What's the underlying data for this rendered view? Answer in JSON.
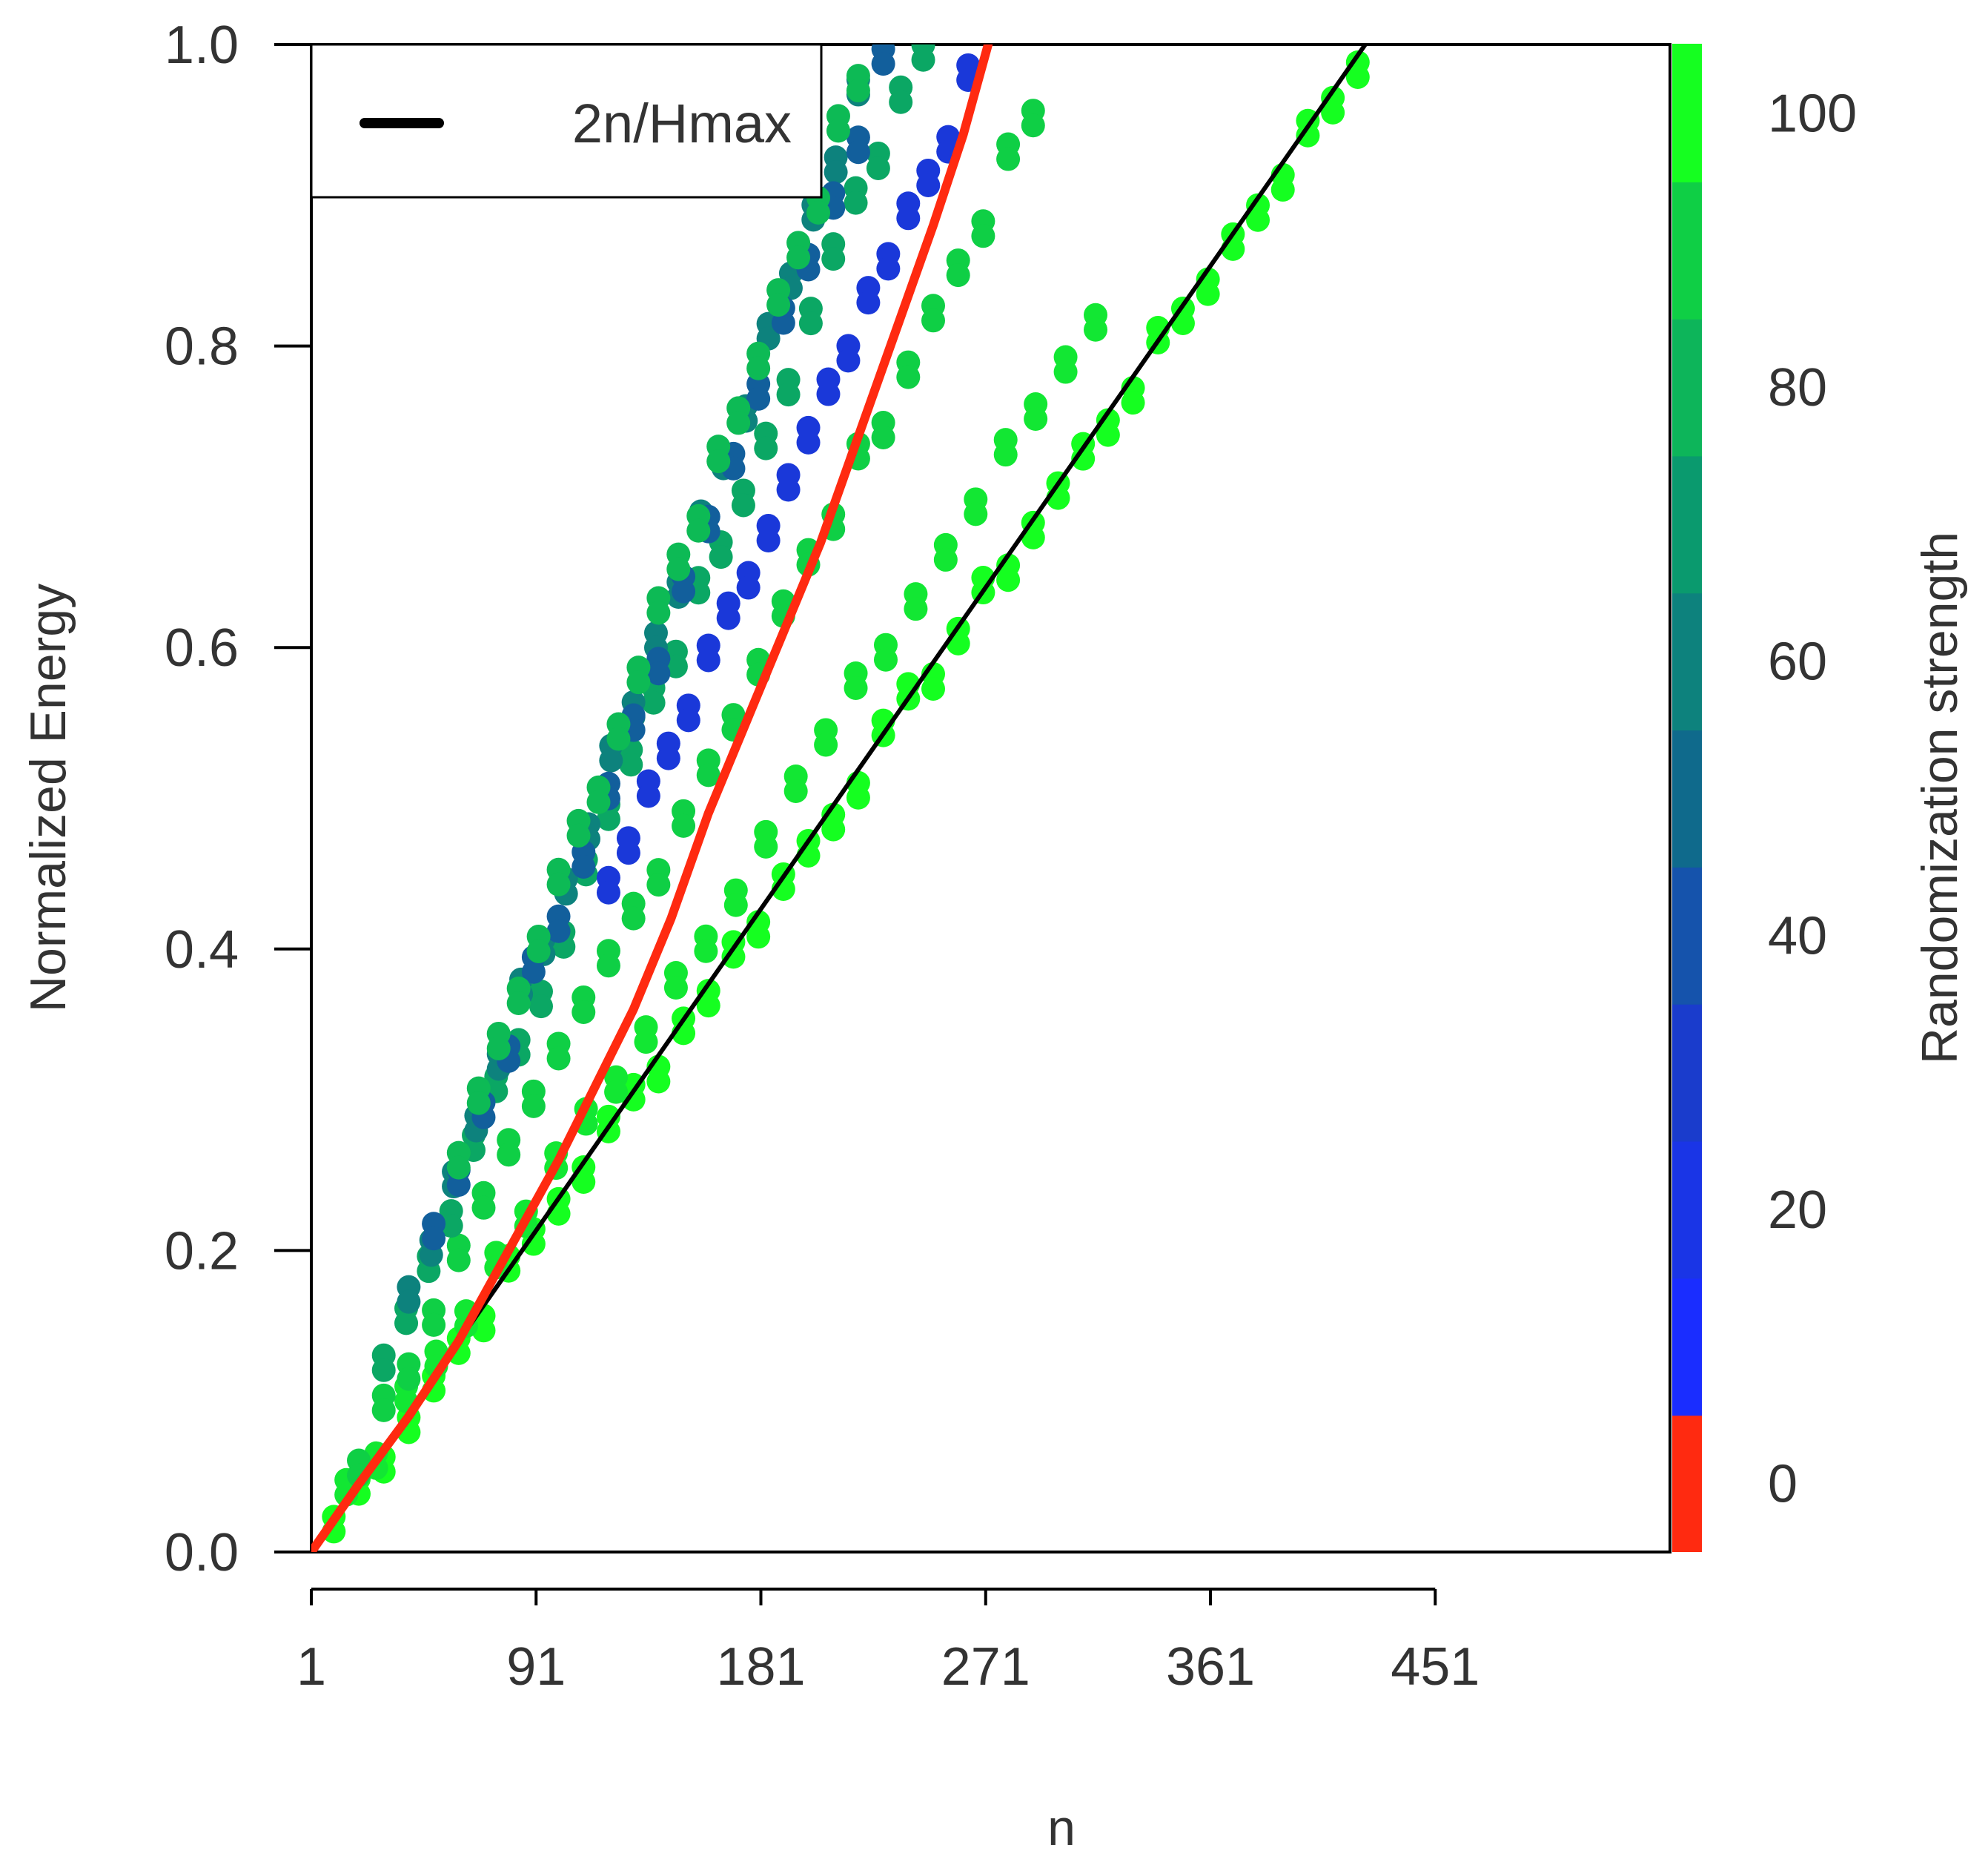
{
  "chart_data": {
    "type": "scatter",
    "title": "",
    "xlabel": "n",
    "ylabel": "Normalized Energy",
    "xlim": [
      1,
      545
    ],
    "ylim": [
      0,
      1
    ],
    "x_ticks": [
      "1",
      "91",
      "181",
      "271",
      "361",
      "451"
    ],
    "y_ticks": [
      "0.0",
      "0.2",
      "0.4",
      "0.6",
      "0.8",
      "1.0"
    ],
    "legend": {
      "position": "top-left",
      "entries": [
        {
          "label": "2n/Hmax",
          "color": "#000000",
          "style": "line"
        }
      ]
    },
    "colorbar": {
      "title": "Randomization strength",
      "ticks": [
        "0",
        "20",
        "40",
        "60",
        "80",
        "100"
      ],
      "range": [
        -5,
        105
      ],
      "stops": [
        {
          "value": 0,
          "color": "#ff2a10"
        },
        {
          "value": 10,
          "color": "#1a2dff"
        },
        {
          "value": 30,
          "color": "#1a3ccc"
        },
        {
          "value": 50,
          "color": "#0f6a8c"
        },
        {
          "value": 70,
          "color": "#0a9a6e"
        },
        {
          "value": 90,
          "color": "#0fcf45"
        },
        {
          "value": 100,
          "color": "#15ff20"
        }
      ]
    },
    "series": [
      {
        "name": "2n/Hmax",
        "kind": "line",
        "color": "#000000",
        "x": [
          1,
          423
        ],
        "y": [
          0,
          1
        ]
      },
      {
        "name": "randomization 0",
        "kind": "line",
        "color": "#ff2a10",
        "x": [
          1,
          20,
          40,
          60,
          80,
          100,
          115,
          130,
          145,
          160,
          175,
          190,
          205,
          220,
          235,
          250,
          262,
          272
        ],
        "y": [
          0,
          0.045,
          0.09,
          0.14,
          0.2,
          0.26,
          0.31,
          0.36,
          0.42,
          0.49,
          0.55,
          0.61,
          0.67,
          0.74,
          0.81,
          0.88,
          0.94,
          1.0
        ]
      }
    ],
    "point_groups": [
      {
        "strength": 100,
        "slope": 0.00236,
        "x_start": 10,
        "x_end": 430,
        "step": 10
      },
      {
        "strength": 95,
        "slope": 0.00262,
        "x_start": 15,
        "x_end": 320,
        "step": 12
      },
      {
        "strength": 90,
        "slope": 0.0033,
        "x_start": 20,
        "x_end": 295,
        "step": 10
      },
      {
        "strength": 75,
        "slope": 0.0041,
        "x_start": 30,
        "x_end": 262,
        "step": 9
      },
      {
        "strength": 60,
        "slope": 0.0044,
        "x_start": 40,
        "x_end": 230,
        "step": 9
      },
      {
        "strength": 45,
        "slope": 0.0043,
        "x_start": 50,
        "x_end": 235,
        "step": 10
      },
      {
        "strength": 25,
        "slope": 0.0037,
        "x_start": 120,
        "x_end": 282,
        "step": 8
      },
      {
        "strength": 82,
        "slope": 0.00445,
        "x_start": 60,
        "x_end": 220,
        "step": 8
      }
    ]
  }
}
